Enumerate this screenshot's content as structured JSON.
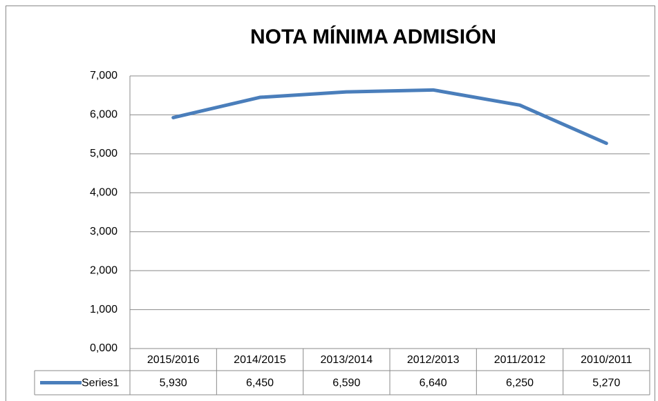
{
  "chart_data": {
    "type": "line",
    "title": "NOTA MÍNIMA ADMISIÓN",
    "categories": [
      "2015/2016",
      "2014/2015",
      "2013/2014",
      "2012/2013",
      "2011/2012",
      "2010/2011"
    ],
    "series": [
      {
        "name": "Series1",
        "color": "#4a7ebb",
        "values": [
          5.93,
          6.45,
          6.59,
          6.64,
          6.25,
          5.27
        ],
        "value_labels": [
          "5,930",
          "6,450",
          "6,590",
          "6,640",
          "6,250",
          "5,270"
        ]
      }
    ],
    "ylim": [
      0,
      7
    ],
    "yticks": [
      {
        "value": 0,
        "label": "0,000"
      },
      {
        "value": 1,
        "label": "1,000"
      },
      {
        "value": 2,
        "label": "2,000"
      },
      {
        "value": 3,
        "label": "3,000"
      },
      {
        "value": 4,
        "label": "4,000"
      },
      {
        "value": 5,
        "label": "5,000"
      },
      {
        "value": 6,
        "label": "6,000"
      },
      {
        "value": 7,
        "label": "7,000"
      }
    ],
    "grid": true,
    "data_table": true
  }
}
